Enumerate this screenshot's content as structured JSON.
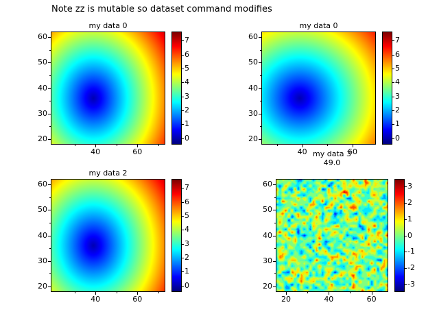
{
  "figure": {
    "title": "Note zz is mutable so dataset command modifies"
  },
  "colors": {
    "background": "#ffffff",
    "axis": "#000000",
    "colormap": "jet"
  },
  "chart_data": [
    {
      "position": "top-left",
      "type": "heatmap",
      "title": "my data 0",
      "colormap": "jet",
      "xlim": [
        19,
        73
      ],
      "ylim": [
        18,
        62
      ],
      "xticks": [
        40,
        60
      ],
      "xminorticks": [
        30,
        50,
        70
      ],
      "yticks": [
        20,
        30,
        40,
        50,
        60
      ],
      "yminorticks": [
        25,
        35,
        45,
        55
      ],
      "colorbar": {
        "min": -0.4,
        "max": 7.6,
        "ticks": [
          0,
          1,
          2,
          3,
          4,
          5,
          6,
          7
        ]
      },
      "field": {
        "kind": "radial-distance",
        "center_xy": [
          39,
          36
        ],
        "divisor": 6.2,
        "min_value": 0,
        "max_value": 7.5
      }
    },
    {
      "position": "top-right",
      "type": "heatmap",
      "title": "my data 0",
      "colormap": "jet",
      "xlim": [
        24,
        69
      ],
      "ylim": [
        18,
        62
      ],
      "xticks": [
        40,
        60
      ],
      "xminorticks": [
        30,
        50
      ],
      "yticks": [
        20,
        30,
        40,
        50,
        60
      ],
      "yminorticks": [
        25,
        35,
        45,
        55
      ],
      "colorbar": {
        "min": -0.4,
        "max": 7.6,
        "ticks": [
          0,
          1,
          2,
          3,
          4,
          5,
          6,
          7
        ]
      },
      "field": {
        "kind": "radial-distance",
        "center_xy": [
          39,
          36
        ],
        "divisor": 6.2,
        "min_value": 0,
        "max_value": 7.5
      }
    },
    {
      "position": "bottom-left",
      "type": "heatmap",
      "title": "my data 2",
      "colormap": "jet",
      "xlim": [
        19,
        73
      ],
      "ylim": [
        18,
        62
      ],
      "xticks": [
        40,
        60
      ],
      "xminorticks": [
        30,
        50,
        70
      ],
      "yticks": [
        20,
        30,
        40,
        50,
        60
      ],
      "yminorticks": [
        25,
        35,
        45,
        55
      ],
      "colorbar": {
        "min": -0.4,
        "max": 7.6,
        "ticks": [
          0,
          1,
          2,
          3,
          4,
          5,
          6,
          7
        ]
      },
      "field": {
        "kind": "radial-distance",
        "center_xy": [
          39,
          36
        ],
        "divisor": 6.2,
        "min_value": 0,
        "max_value": 7.5
      }
    },
    {
      "position": "bottom-right",
      "type": "heatmap",
      "title": "my data 3",
      "subtitle": "49.0",
      "colormap": "jet",
      "xlim": [
        15.5,
        67.5
      ],
      "ylim": [
        18,
        62
      ],
      "xticks": [
        20,
        40,
        60
      ],
      "xminorticks": [
        30,
        50
      ],
      "yticks": [
        20,
        30,
        40,
        50,
        60
      ],
      "yminorticks": [
        25,
        35,
        45,
        55
      ],
      "colorbar": {
        "min": -3.4,
        "max": 3.4,
        "ticks": [
          -3,
          -2,
          -1,
          0,
          1,
          2,
          3
        ]
      },
      "field": {
        "kind": "random-noise",
        "mean": 0,
        "std": 1.0,
        "seed": 42,
        "contour_step": 0.5,
        "grid": 36
      }
    }
  ]
}
